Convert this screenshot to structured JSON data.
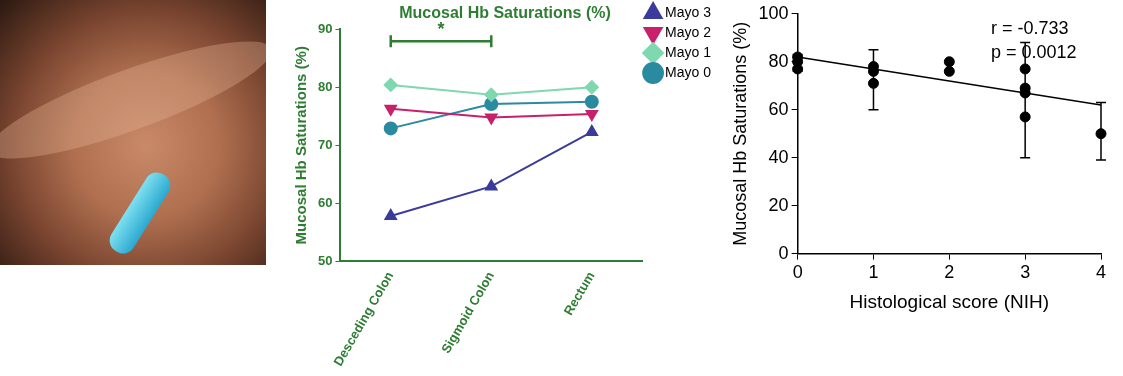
{
  "chart_data": [
    {
      "type": "line",
      "title": "Mucosal Hb Saturations (%)",
      "y_label": "Mucosal Hb Saturations (%)",
      "categories": [
        "Desceding Colon",
        "Sigmoid Colon",
        "Rectum"
      ],
      "series": [
        {
          "name": "Mayo 3",
          "color": "#3b3b9c",
          "marker": "triangle",
          "values": [
            57.8,
            62.9,
            72.3
          ]
        },
        {
          "name": "Mayo 2",
          "color": "#c8206a",
          "marker": "triangle-down",
          "values": [
            76.3,
            74.8,
            75.4
          ]
        },
        {
          "name": "Mayo 1",
          "color": "#7fd8b0",
          "marker": "diamond",
          "values": [
            80.4,
            78.7,
            80.0
          ]
        },
        {
          "name": "Mayo 0",
          "color": "#2a8aa0",
          "marker": "circle",
          "values": [
            72.9,
            77.1,
            77.5
          ]
        }
      ],
      "ylim": [
        50,
        90
      ],
      "yticks": [
        50,
        60,
        70,
        80,
        90
      ],
      "annotations": [
        {
          "text": "*",
          "from": "Desceding Colon",
          "to": "Sigmoid Colon"
        }
      ],
      "legend": "right",
      "grid": false
    },
    {
      "type": "scatter",
      "x_label": "Histological score (NIH)",
      "y_label": "Mucosal Hb Saturations (%)",
      "x": [
        0,
        0,
        0,
        1,
        1,
        1,
        2,
        2,
        3,
        3,
        3,
        3,
        4
      ],
      "values": [
        82,
        80,
        77,
        78,
        76,
        71,
        80,
        76,
        77,
        69,
        67,
        57,
        50
      ],
      "error_bars": {
        "x": [
          0,
          1,
          3,
          4
        ],
        "low": [
          76,
          60,
          40,
          39
        ],
        "high": [
          83,
          85,
          88,
          63
        ]
      },
      "trend_line": {
        "x": [
          0,
          4
        ],
        "values": [
          82,
          62
        ]
      },
      "xlim": [
        0,
        4
      ],
      "xticks": [
        0,
        1,
        2,
        3,
        4
      ],
      "ylim": [
        0,
        100
      ],
      "yticks": [
        0,
        20,
        40,
        60,
        80,
        100
      ],
      "annotations": [
        "r = -0.733",
        "p = 0.0012"
      ],
      "color": "#000000",
      "marker": "circle",
      "grid": false
    }
  ]
}
